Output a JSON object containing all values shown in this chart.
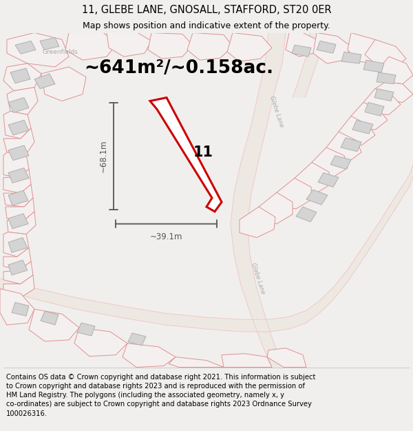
{
  "title": "11, GLEBE LANE, GNOSALL, STAFFORD, ST20 0ER",
  "subtitle": "Map shows position and indicative extent of the property.",
  "area_text": "~641m²/~0.158ac.",
  "property_number": "11",
  "dim_height": "~68.1m",
  "dim_width": "~39.1m",
  "footer": "Contains OS data © Crown copyright and database right 2021. This information is subject to Crown copyright and database rights 2023 and is reproduced with the permission of HM Land Registry. The polygons (including the associated geometry, namely x, y co-ordinates) are subject to Crown copyright and database rights 2023 Ordnance Survey 100026316.",
  "bg_color": "#f0efed",
  "map_bg": "#f2f1ef",
  "plot_outline_color": "#cc0000",
  "road_color": "#f0c8c8",
  "road_fill": "#f8f4f4",
  "building_fill": "#d4d4d4",
  "building_edge": "#b0b0b0",
  "parcel_edge": "#e09090",
  "parcel_fill": "#f5f0f0",
  "label_color": "#aaaaaa",
  "dim_color": "#555555",
  "title_fontsize": 10.5,
  "subtitle_fontsize": 9,
  "area_fontsize": 19,
  "footer_fontsize": 7.2,
  "greenfields_label": "Greenfields",
  "glebe_lane_label": "Glebe Lane"
}
